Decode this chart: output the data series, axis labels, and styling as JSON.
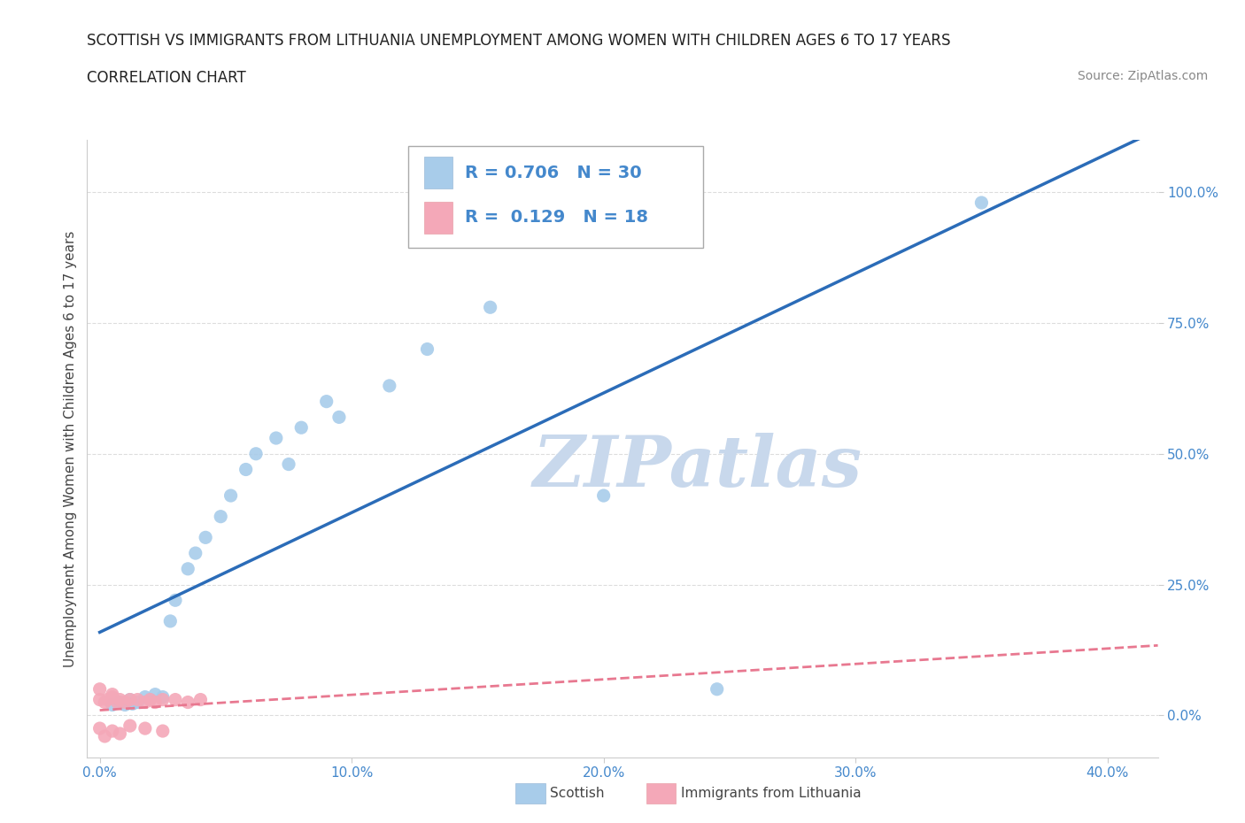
{
  "title_line1": "SCOTTISH VS IMMIGRANTS FROM LITHUANIA UNEMPLOYMENT AMONG WOMEN WITH CHILDREN AGES 6 TO 17 YEARS",
  "title_line2": "CORRELATION CHART",
  "source_text": "Source: ZipAtlas.com",
  "ylabel": "Unemployment Among Women with Children Ages 6 to 17 years",
  "x_tick_labels": [
    "0.0%",
    "10.0%",
    "20.0%",
    "30.0%",
    "40.0%"
  ],
  "x_tick_values": [
    0.0,
    0.1,
    0.2,
    0.3,
    0.4
  ],
  "y_tick_labels": [
    "0.0%",
    "25.0%",
    "50.0%",
    "75.0%",
    "100.0%"
  ],
  "y_tick_values": [
    0.0,
    0.25,
    0.5,
    0.75,
    1.0
  ],
  "xlim": [
    -0.005,
    0.42
  ],
  "ylim": [
    -0.08,
    1.1
  ],
  "blue_scatter_x": [
    0.005,
    0.008,
    0.01,
    0.012,
    0.013,
    0.015,
    0.018,
    0.02,
    0.022,
    0.025,
    0.028,
    0.03,
    0.035,
    0.038,
    0.042,
    0.048,
    0.052,
    0.058,
    0.062,
    0.07,
    0.075,
    0.08,
    0.09,
    0.095,
    0.115,
    0.13,
    0.155,
    0.2,
    0.245,
    0.35
  ],
  "blue_scatter_y": [
    0.02,
    0.025,
    0.02,
    0.03,
    0.022,
    0.025,
    0.035,
    0.03,
    0.04,
    0.035,
    0.18,
    0.22,
    0.28,
    0.31,
    0.34,
    0.38,
    0.42,
    0.47,
    0.5,
    0.53,
    0.48,
    0.55,
    0.6,
    0.57,
    0.63,
    0.7,
    0.78,
    0.42,
    0.05,
    0.98
  ],
  "pink_scatter_x": [
    0.0,
    0.0,
    0.002,
    0.003,
    0.005,
    0.005,
    0.007,
    0.008,
    0.01,
    0.012,
    0.015,
    0.018,
    0.02,
    0.022,
    0.025,
    0.03,
    0.035,
    0.04
  ],
  "pink_scatter_y": [
    0.03,
    0.05,
    0.025,
    0.03,
    0.035,
    0.04,
    0.025,
    0.03,
    0.025,
    0.03,
    0.03,
    0.025,
    0.03,
    0.025,
    0.03,
    0.03,
    0.025,
    0.03
  ],
  "pink_below_y": [
    -0.025,
    -0.04,
    -0.03,
    -0.035,
    -0.02,
    -0.025,
    -0.03
  ],
  "pink_below_x": [
    0.0,
    0.002,
    0.005,
    0.008,
    0.012,
    0.018,
    0.025
  ],
  "blue_R": 0.706,
  "blue_N": 30,
  "pink_R": 0.129,
  "pink_N": 18,
  "blue_color": "#A8CCEA",
  "pink_color": "#F4A8B8",
  "blue_line_color": "#2B6CB8",
  "pink_line_color": "#E87890",
  "scatter_size": 120,
  "watermark_text": "ZIPatlas",
  "watermark_color": "#C8D8EC",
  "grid_color": "#DDDDDD",
  "background_color": "#FFFFFF",
  "title_fontsize": 12,
  "label_fontsize": 11,
  "tick_fontsize": 11,
  "tick_color": "#4488CC"
}
